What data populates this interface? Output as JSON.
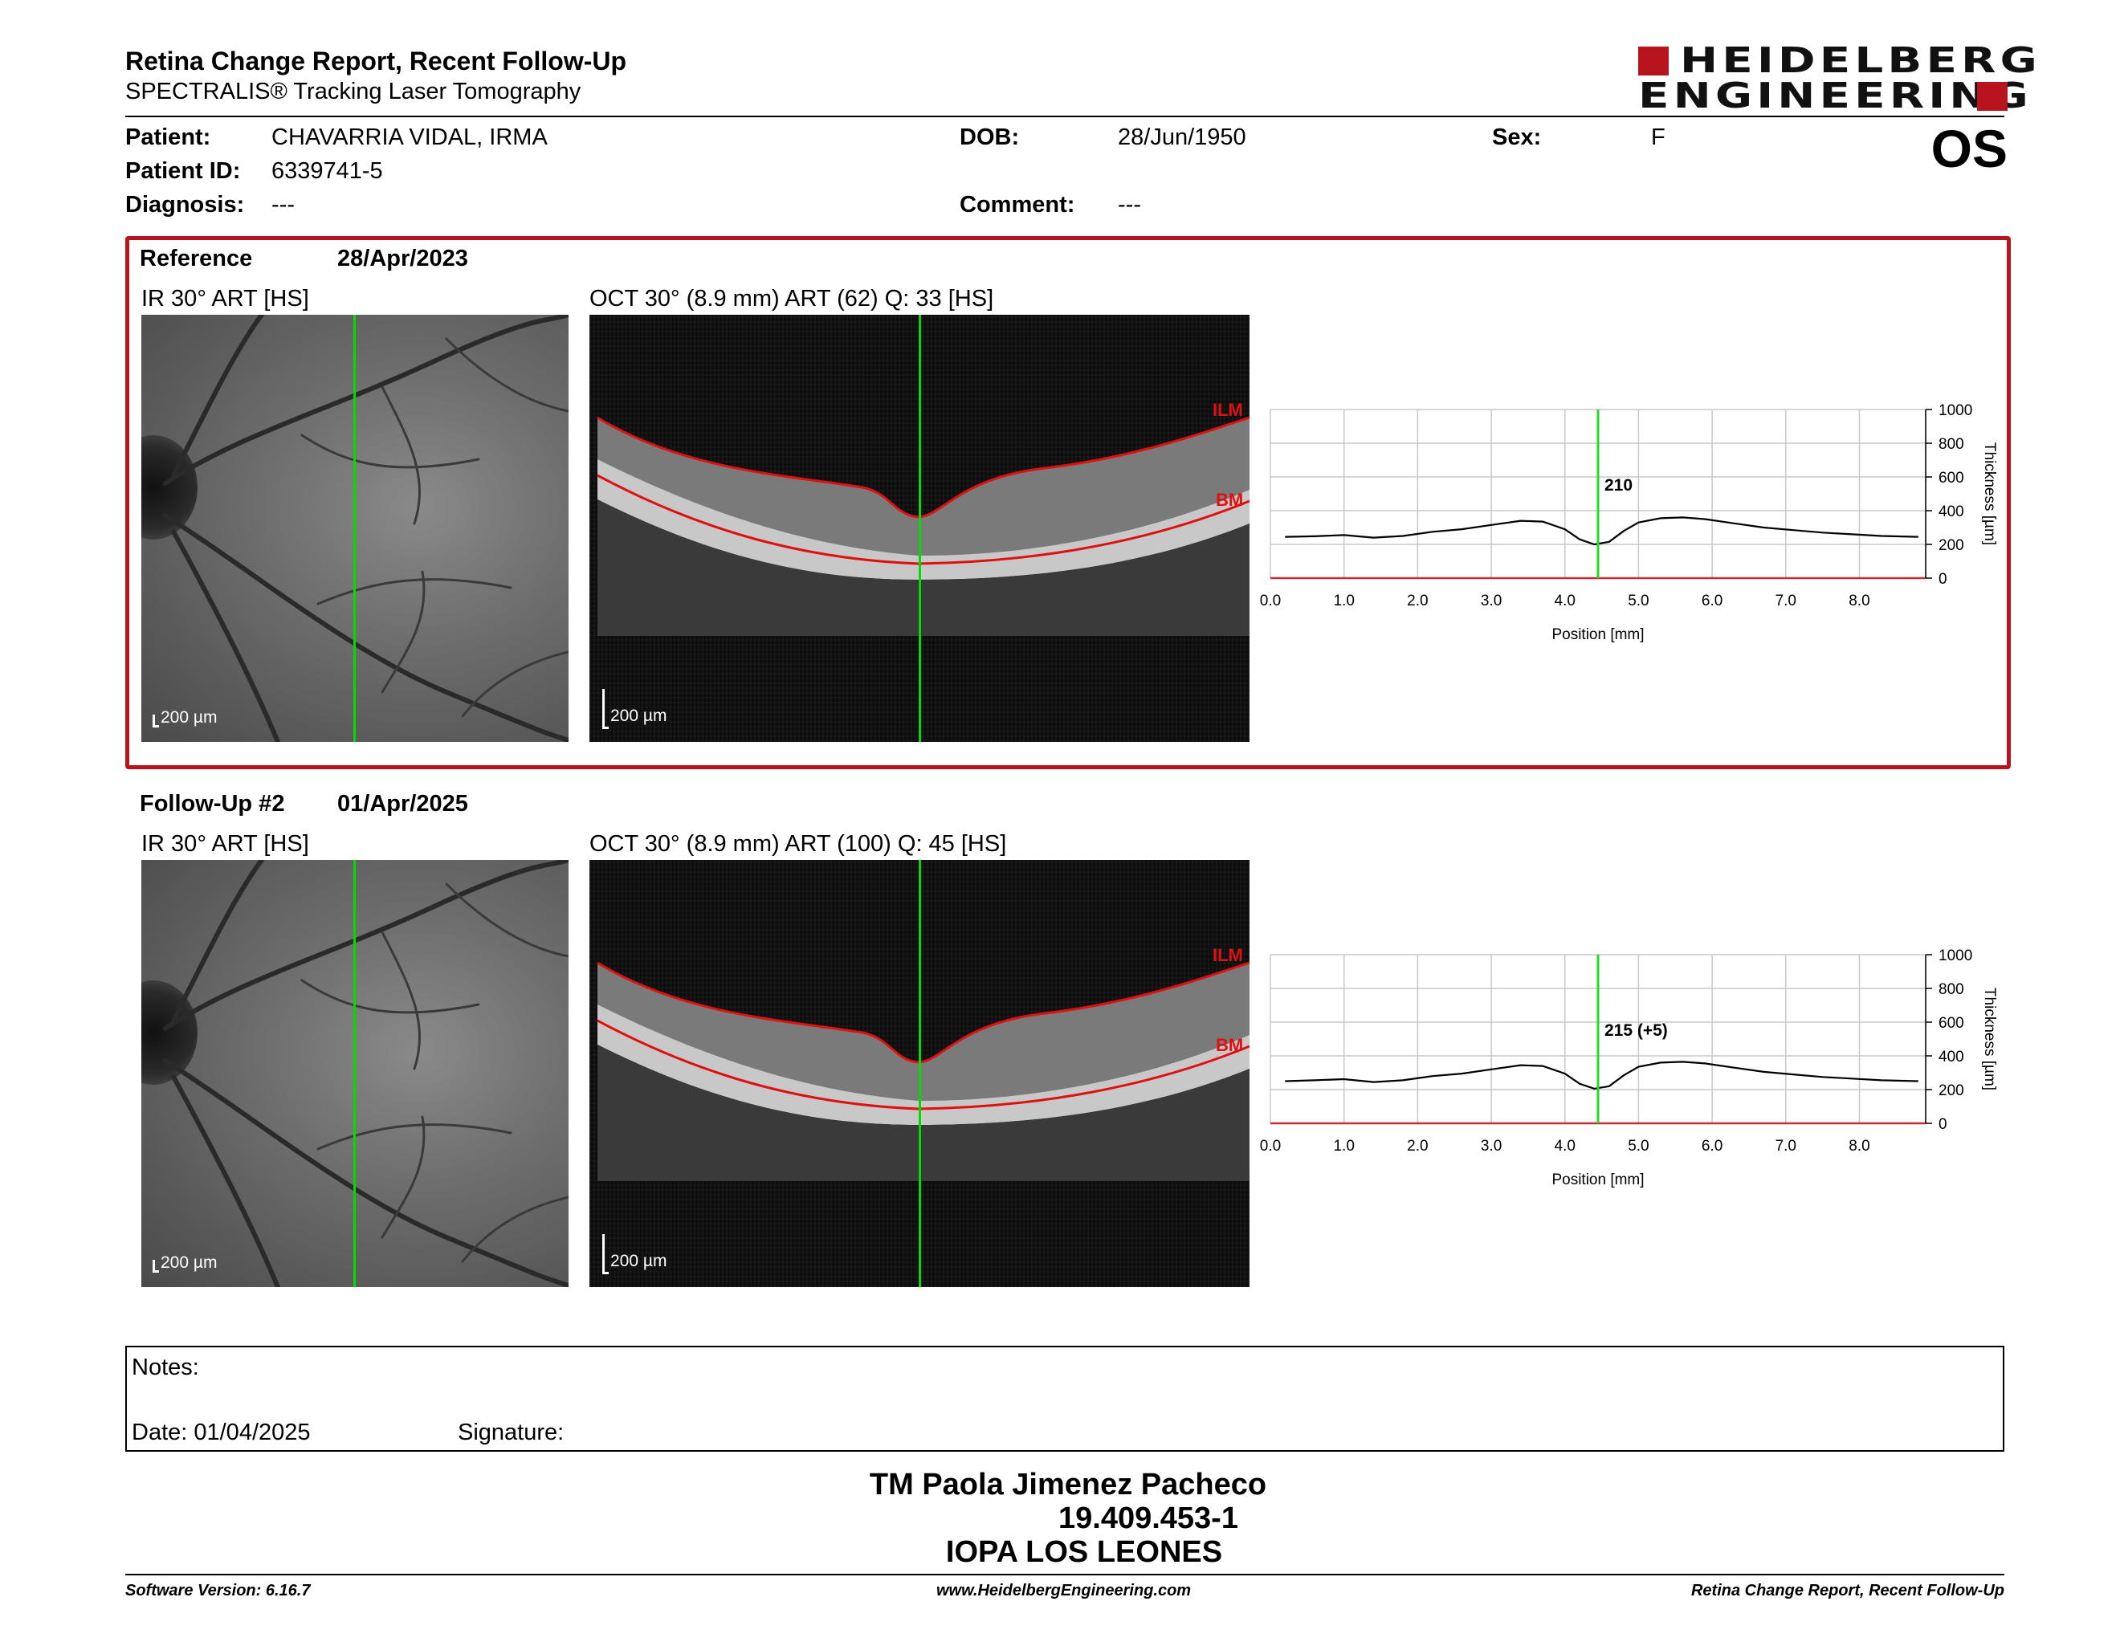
{
  "report": {
    "title": "Retina Change Report, Recent Follow-Up",
    "subtitle": "SPECTRALIS® Tracking Laser Tomography",
    "eye": "OS"
  },
  "brand": {
    "line1": "HEIDELBERG",
    "line2": "ENGINEERING",
    "color": "#b8141d"
  },
  "patient": {
    "name_label": "Patient:",
    "name": "CHAVARRIA VIDAL, IRMA",
    "id_label": "Patient ID:",
    "id": "6339741-5",
    "diagnosis_label": "Diagnosis:",
    "diagnosis": "---",
    "dob_label": "DOB:",
    "dob": "28/Jun/1950",
    "comment_label": "Comment:",
    "comment": "---",
    "sex_label": "Sex:",
    "sex": "F"
  },
  "reference": {
    "heading": "Reference",
    "date": "28/Apr/2023",
    "ir_label": "IR 30° ART [HS]",
    "oct_label": "OCT 30° (8.9 mm) ART (62) Q: 33 [HS]",
    "ir_scale": "200 µm",
    "oct_scale": "200 µm",
    "ilm": "ILM",
    "bm": "BM"
  },
  "followup": {
    "heading": "Follow-Up #2",
    "date": "01/Apr/2025",
    "ir_label": "IR 30° ART [HS]",
    "oct_label": "OCT 30° (8.9 mm) ART (100) Q: 45 [HS]",
    "ir_scale": "200 µm",
    "oct_scale": "200 µm",
    "ilm": "ILM",
    "bm": "BM"
  },
  "chart_data": [
    {
      "type": "line",
      "xlabel": "Position [mm]",
      "ylabel": "Thickness [µm]",
      "xlim": [
        0,
        8.9
      ],
      "ylim": [
        0,
        1000
      ],
      "xticks": [
        "0.0",
        "1.0",
        "2.0",
        "3.0",
        "4.0",
        "5.0",
        "6.0",
        "7.0",
        "8.0"
      ],
      "yticks": [
        "0",
        "200",
        "400",
        "600",
        "800",
        "1000"
      ],
      "cursor_x": 4.45,
      "cursor_label": "210",
      "grid": true,
      "x": [
        0.2,
        0.6,
        1.0,
        1.4,
        1.8,
        2.2,
        2.6,
        3.0,
        3.4,
        3.7,
        4.0,
        4.2,
        4.4,
        4.6,
        4.8,
        5.0,
        5.3,
        5.6,
        5.9,
        6.3,
        6.7,
        7.1,
        7.5,
        7.9,
        8.3,
        8.8
      ],
      "y": [
        245,
        248,
        255,
        240,
        250,
        275,
        290,
        315,
        340,
        335,
        290,
        230,
        200,
        215,
        280,
        330,
        355,
        360,
        350,
        325,
        300,
        285,
        270,
        260,
        250,
        245
      ],
      "colors": {
        "line": "#000000",
        "cursor": "#22dd22",
        "grid": "#c8c8c8",
        "baseline": "#c03030"
      }
    },
    {
      "type": "line",
      "xlabel": "Position [mm]",
      "ylabel": "Thickness [µm]",
      "xlim": [
        0,
        8.9
      ],
      "ylim": [
        0,
        1000
      ],
      "xticks": [
        "0.0",
        "1.0",
        "2.0",
        "3.0",
        "4.0",
        "5.0",
        "6.0",
        "7.0",
        "8.0"
      ],
      "yticks": [
        "0",
        "200",
        "400",
        "600",
        "800",
        "1000"
      ],
      "cursor_x": 4.45,
      "cursor_label": "215 (+5)",
      "grid": true,
      "x": [
        0.2,
        0.6,
        1.0,
        1.4,
        1.8,
        2.2,
        2.6,
        3.0,
        3.4,
        3.7,
        4.0,
        4.2,
        4.4,
        4.6,
        4.8,
        5.0,
        5.3,
        5.6,
        5.9,
        6.3,
        6.7,
        7.1,
        7.5,
        7.9,
        8.3,
        8.8
      ],
      "y": [
        250,
        255,
        262,
        245,
        255,
        280,
        295,
        320,
        345,
        340,
        295,
        235,
        205,
        220,
        285,
        335,
        360,
        365,
        355,
        330,
        305,
        290,
        275,
        265,
        255,
        250
      ],
      "colors": {
        "line": "#000000",
        "cursor": "#22dd22",
        "grid": "#c8c8c8",
        "baseline": "#c03030"
      }
    }
  ],
  "notes": {
    "notes_label": "Notes:",
    "date_label": "Date: 01/04/2025",
    "signature_label": "Signature:"
  },
  "signature": {
    "name": "TM Paola Jimenez Pacheco",
    "rut": "19.409.453-1",
    "clinic": "IOPA LOS LEONES"
  },
  "footer": {
    "software": "Software Version: 6.16.7",
    "url": "www.HeidelbergEngineering.com",
    "report_name": "Retina Change Report, Recent Follow-Up"
  }
}
